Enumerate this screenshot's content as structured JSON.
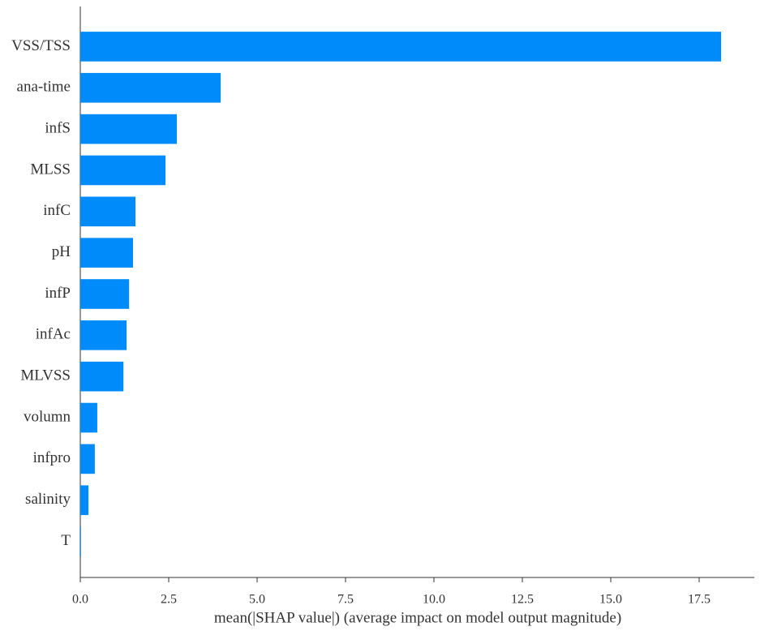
{
  "chart_data": {
    "type": "barh",
    "xlabel": "mean(|SHAP value|) (average impact on model output magnitude)",
    "categories": [
      "VSS/TSS",
      "ana-time",
      "infS",
      "MLSS",
      "infC",
      "pH",
      "infP",
      "infAc",
      "MLVSS",
      "volumn",
      "infpro",
      "salinity",
      "T"
    ],
    "values": [
      18.12,
      3.97,
      2.73,
      2.41,
      1.56,
      1.49,
      1.38,
      1.31,
      1.22,
      0.48,
      0.41,
      0.23,
      0.02
    ],
    "color": "#008bfb",
    "xlim": [
      0,
      19.06
    ],
    "xticks": [
      {
        "value": 0,
        "label": "0.0"
      },
      2.5,
      {
        "value": 5,
        "label": "5.0"
      },
      7.5,
      {
        "value": 10,
        "label": "10.0"
      },
      12.5,
      {
        "value": 15,
        "label": "15.0"
      },
      17.5
    ],
    "grid": false
  }
}
